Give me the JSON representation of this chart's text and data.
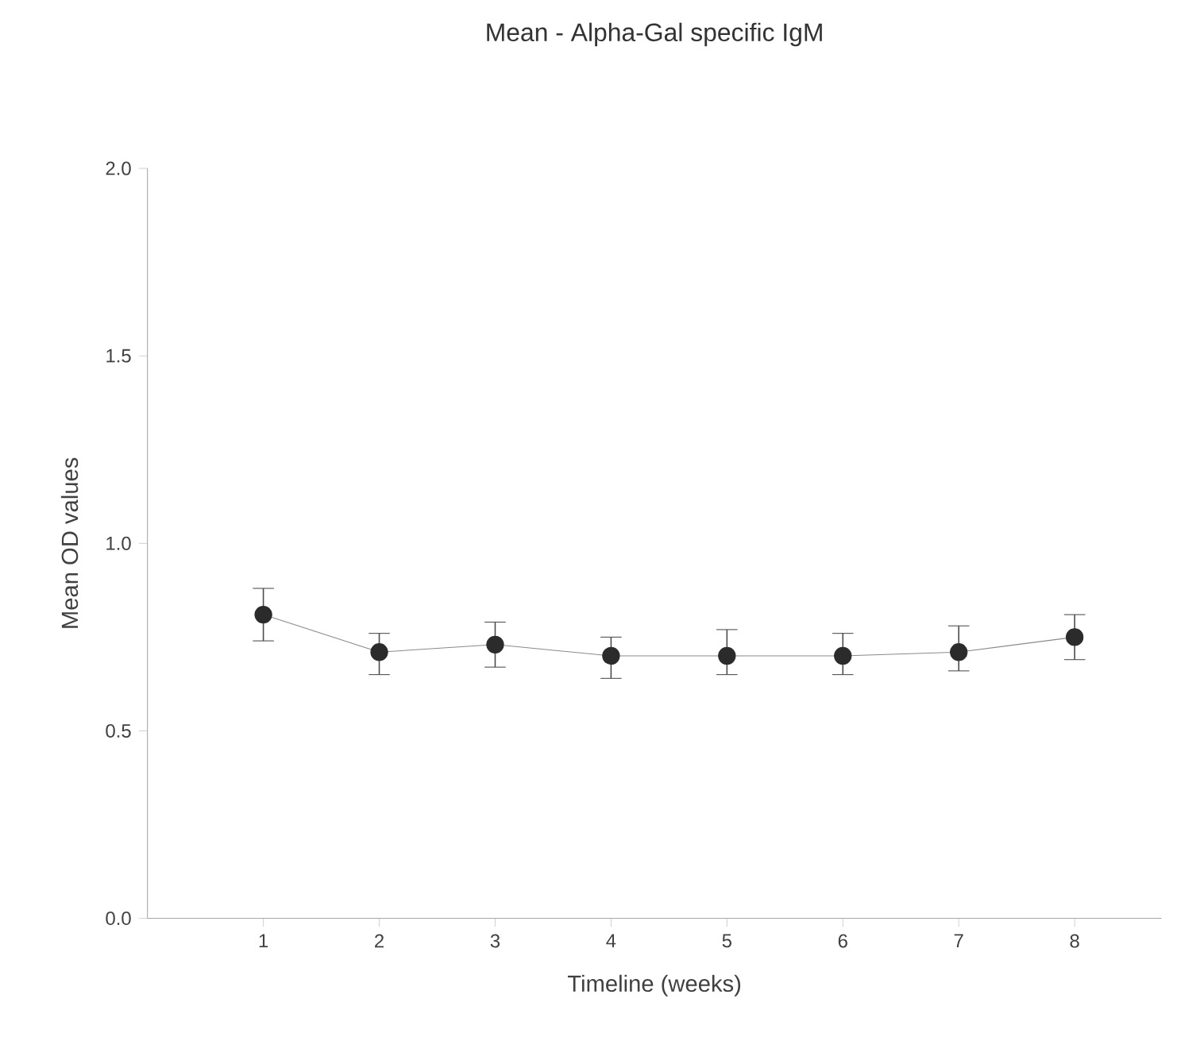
{
  "chart_data": {
    "type": "line",
    "title": "Mean - Alpha-Gal specific IgM",
    "xlabel": "Timeline (weeks)",
    "ylabel": "Mean OD values",
    "x": [
      1,
      2,
      3,
      4,
      5,
      6,
      7,
      8
    ],
    "series": [
      {
        "color": "#2b2b2b",
        "values": [
          0.81,
          0.71,
          0.73,
          0.7,
          0.7,
          0.7,
          0.71,
          0.75
        ],
        "errors": [
          [
            0.74,
            0.88
          ],
          [
            0.65,
            0.76
          ],
          [
            0.67,
            0.79
          ],
          [
            0.64,
            0.75
          ],
          [
            0.65,
            0.77
          ],
          [
            0.65,
            0.76
          ],
          [
            0.66,
            0.78
          ],
          [
            0.69,
            0.81
          ]
        ]
      }
    ],
    "xlim": [
      0,
      8.75
    ],
    "xticks": [
      1,
      2,
      3,
      4,
      5,
      6,
      7,
      8
    ],
    "ylim": [
      0,
      2
    ],
    "yticks": [
      {
        "value": 0,
        "label": "0.0"
      },
      {
        "value": 0.5,
        "label": "0.5"
      },
      {
        "value": 1,
        "label": "1.0"
      },
      {
        "value": 1.5,
        "label": "1.5"
      },
      {
        "value": 2,
        "label": "2.0"
      }
    ],
    "marker": "circle",
    "line_style": "solid",
    "grid": false
  }
}
